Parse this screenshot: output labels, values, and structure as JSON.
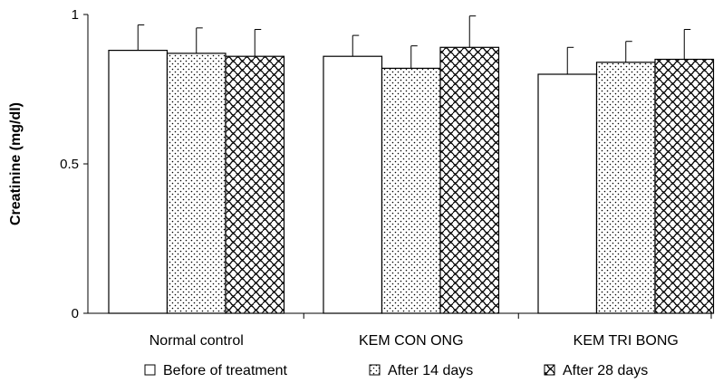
{
  "chart_data": {
    "type": "bar",
    "title": "",
    "xlabel": "",
    "ylabel": "Creatinine (mg/dl)",
    "ylim": [
      0,
      1
    ],
    "yticks": [
      {
        "value": 0,
        "label": "0"
      },
      {
        "value": 0.5,
        "label": "0.5"
      },
      {
        "value": 1,
        "label": "1"
      }
    ],
    "grid": false,
    "legend_position": "bottom",
    "categories": [
      "Normal control",
      "KEM CON ONG",
      "KEM TRI BONG"
    ],
    "series": [
      {
        "name": "Before of treatment",
        "pattern": "solid-white",
        "values": [
          0.88,
          0.86,
          0.8
        ],
        "errors": [
          0.085,
          0.07,
          0.09
        ]
      },
      {
        "name": "After 14 days",
        "pattern": "dots",
        "values": [
          0.87,
          0.82,
          0.84
        ],
        "errors": [
          0.085,
          0.075,
          0.07
        ]
      },
      {
        "name": "After 28 days",
        "pattern": "scales",
        "values": [
          0.86,
          0.89,
          0.85
        ],
        "errors": [
          0.09,
          0.105,
          0.1
        ]
      }
    ]
  }
}
